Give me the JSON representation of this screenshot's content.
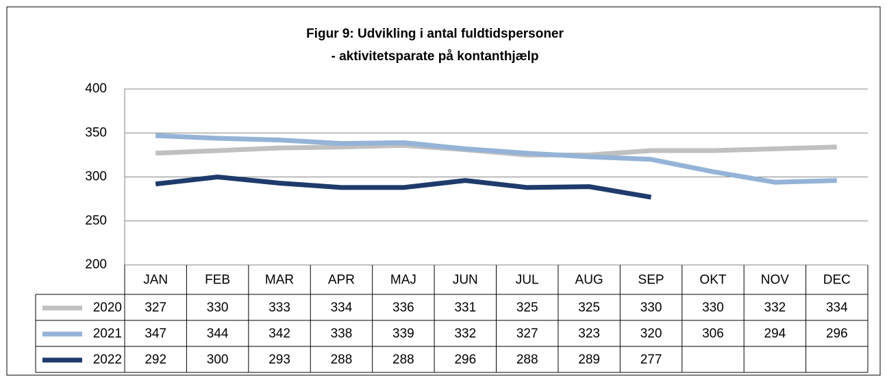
{
  "chart_data": {
    "type": "line",
    "title": [
      "Figur 9: Udvikling i antal fuldtidspersoner",
      "- aktivitetsparate på kontanthjælp"
    ],
    "categories": [
      "JAN",
      "FEB",
      "MAR",
      "APR",
      "MAJ",
      "JUN",
      "JUL",
      "AUG",
      "SEP",
      "OKT",
      "NOV",
      "DEC"
    ],
    "series": [
      {
        "name": "2020",
        "color": "#c0c0c0",
        "values": [
          327,
          330,
          333,
          334,
          336,
          331,
          325,
          325,
          330,
          330,
          332,
          334
        ]
      },
      {
        "name": "2021",
        "color": "#95b3d7",
        "values": [
          347,
          344,
          342,
          338,
          339,
          332,
          327,
          323,
          320,
          306,
          294,
          296
        ]
      },
      {
        "name": "2022",
        "color": "#1f3b6b",
        "values": [
          292,
          300,
          293,
          288,
          288,
          296,
          288,
          289,
          277,
          null,
          null,
          null
        ]
      }
    ],
    "ylim": [
      200,
      400
    ],
    "yticks": [
      200,
      250,
      300,
      350,
      400
    ],
    "grid": true
  }
}
